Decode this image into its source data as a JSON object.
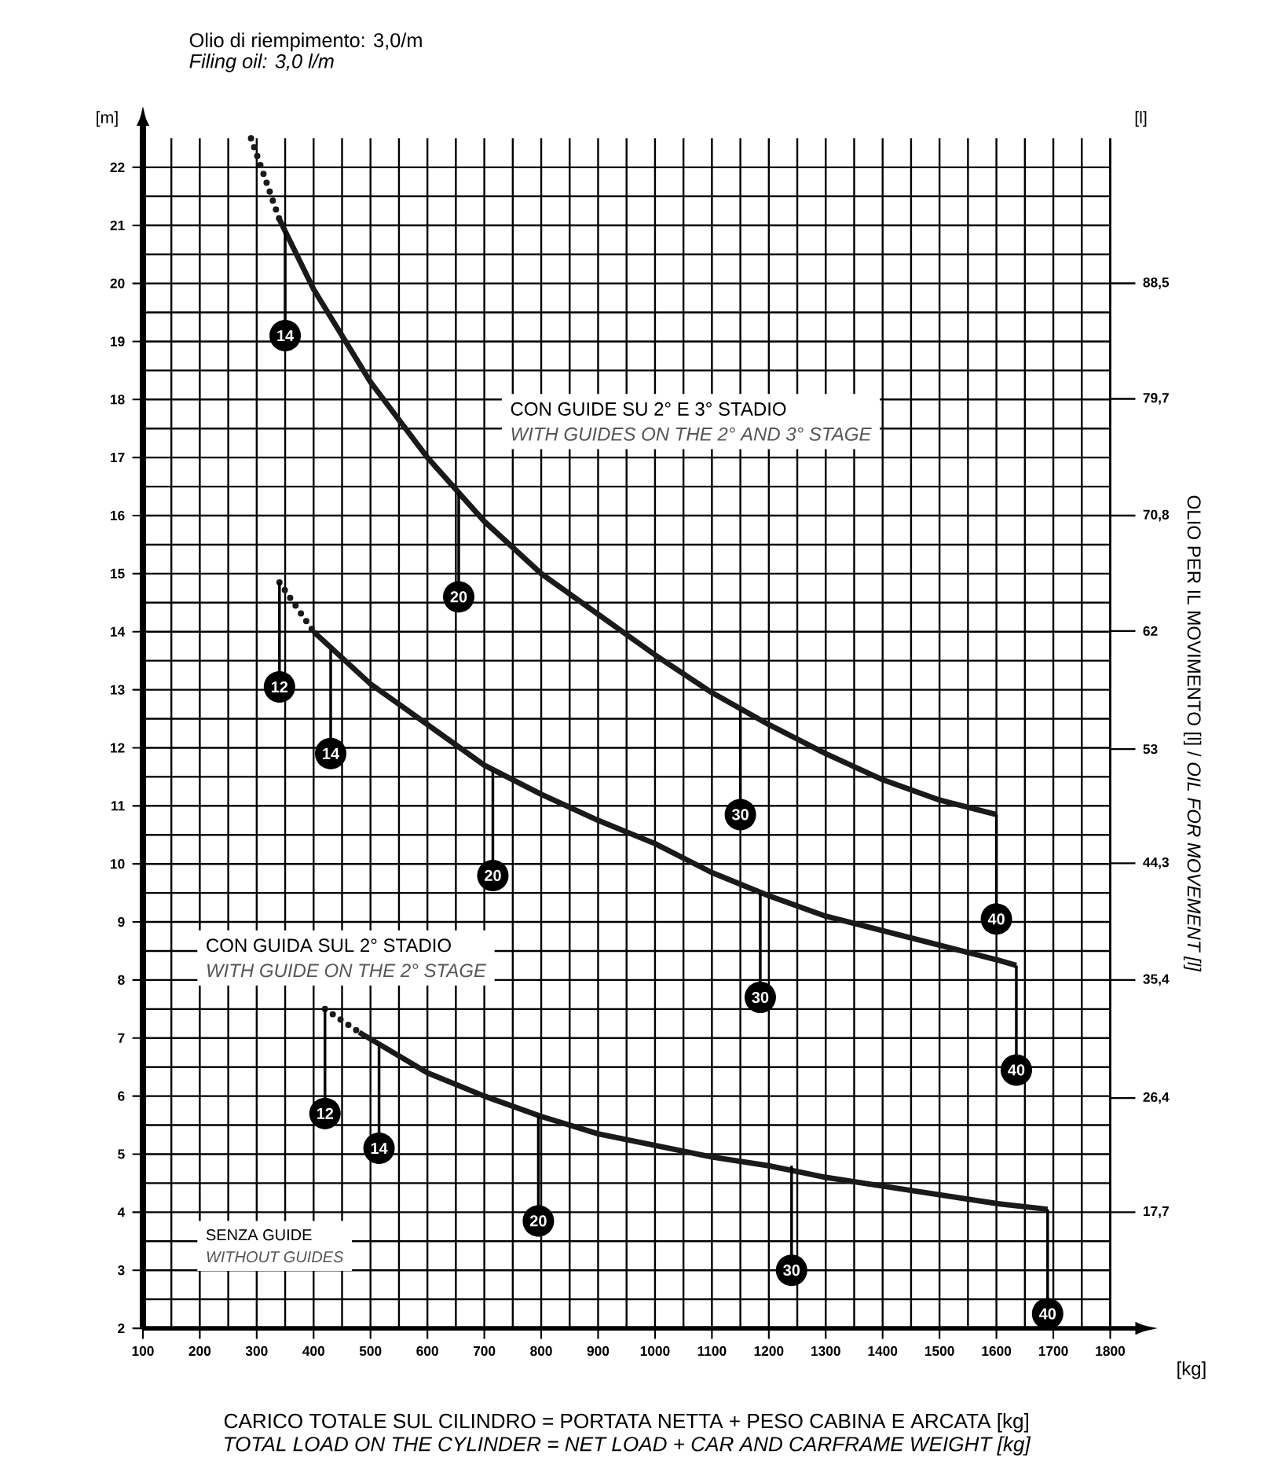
{
  "chart_data": {
    "type": "line",
    "title": "Olio di riempimento: 3,0/m",
    "subtitle": "Filing oil: 3,0 l/m",
    "xlabel": "CARICO TOTALE SUL CILINDRO = PORTATA NETTA + PESO CABINA E ARCATA [kg]",
    "ylabel": "[m]",
    "y2label": "OLIO PER IL MOVIMENTO [l] / *OIL FOR MOVEMENT [l]*",
    "xlim": [
      100,
      1800
    ],
    "xticks": [
      100,
      200,
      300,
      400,
      500,
      600,
      700,
      800,
      900,
      1000,
      1100,
      1200,
      1300,
      1400,
      1500,
      1600,
      1700,
      1800
    ],
    "ylim": [
      2,
      22.5
    ],
    "yticks": [
      2,
      3,
      4,
      5,
      6,
      7,
      8,
      9,
      10,
      11,
      12,
      13,
      14,
      15,
      16,
      17,
      18,
      19,
      20,
      21,
      22
    ],
    "y2lim": [
      8.85,
      99.5625
    ],
    "y2ticks": [
      {
        "value": 17.7,
        "label": "17,7"
      },
      {
        "value": 26.4,
        "label": "26,4"
      },
      {
        "value": 35.4,
        "label": "35,4"
      },
      {
        "value": 44.3,
        "label": "44,3"
      },
      {
        "value": 53,
        "label": "53"
      },
      {
        "value": 62,
        "label": "62"
      },
      {
        "value": 70.8,
        "label": "70,8"
      },
      {
        "value": 79.7,
        "label": "79,7"
      },
      {
        "value": 88.5,
        "label": "88,5"
      }
    ],
    "grid": true,
    "series": [
      {
        "color": "#1a1a1a",
        "line_style": "dotted",
        "x": [
          290,
          340
        ],
        "values": [
          22.5,
          21.1
        ]
      },
      {
        "color": "#1a1a1a",
        "line_style": "solid",
        "x": [
          340,
          400,
          500,
          600,
          700,
          800,
          900,
          1000,
          1100,
          1200,
          1300,
          1400,
          1500,
          1600
        ],
        "values": [
          21.1,
          19.9,
          18.3,
          17.0,
          15.9,
          15.0,
          14.3,
          13.6,
          12.95,
          12.4,
          11.9,
          11.45,
          11.1,
          10.85
        ]
      },
      {
        "color": "#1a1a1a",
        "line_style": "dotted",
        "x": [
          340,
          400
        ],
        "values": [
          14.85,
          14.0
        ]
      },
      {
        "color": "#1a1a1a",
        "line_style": "solid",
        "x": [
          400,
          500,
          600,
          700,
          800,
          900,
          1000,
          1100,
          1200,
          1300,
          1400,
          1500,
          1600,
          1635
        ],
        "values": [
          14.0,
          13.1,
          12.4,
          11.7,
          11.2,
          10.75,
          10.35,
          9.85,
          9.45,
          9.1,
          8.85,
          8.6,
          8.35,
          8.25
        ]
      },
      {
        "color": "#1a1a1a",
        "line_style": "dotted",
        "x": [
          420,
          480
        ],
        "values": [
          7.5,
          7.1
        ]
      },
      {
        "color": "#1a1a1a",
        "line_style": "solid",
        "x": [
          480,
          600,
          700,
          800,
          900,
          1000,
          1100,
          1200,
          1300,
          1400,
          1500,
          1600,
          1690
        ],
        "values": [
          7.1,
          6.4,
          6.0,
          5.65,
          5.35,
          5.15,
          4.95,
          4.8,
          4.6,
          4.45,
          4.3,
          4.15,
          4.05
        ]
      }
    ],
    "annotations": [
      "CON GUIDE SU 2° E 3° STADIO",
      "WITH GUIDES ON THE 2° AND 3° STAGE",
      "CON GUIDA SUL 2° STADIO",
      "WITH GUIDE ON THE 2° STAGE",
      "SENZA GUIDE",
      "WITHOUT GUIDES",
      "[l]",
      "[kg]",
      "TOTAL LOAD ON THE CYLINDER = NET LOAD + CAR AND CARFRAME WEIGHT [kg]",
      {
        "text": "14",
        "x": 350,
        "y": 20.9
      },
      {
        "text": "20",
        "x": 655,
        "y": 16.4
      },
      {
        "text": "30",
        "x": 1150,
        "y": 12.65
      },
      {
        "text": "40",
        "x": 1600,
        "y": 10.85
      },
      {
        "text": "12",
        "x": 340,
        "y": 14.85
      },
      {
        "text": "14",
        "x": 430,
        "y": 13.7
      },
      {
        "text": "20",
        "x": 715,
        "y": 11.6
      },
      {
        "text": "30",
        "x": 1185,
        "y": 9.5
      },
      {
        "text": "40",
        "x": 1635,
        "y": 8.25
      },
      {
        "text": "12",
        "x": 420,
        "y": 7.5
      },
      {
        "text": "14",
        "x": 515,
        "y": 6.9
      },
      {
        "text": "20",
        "x": 795,
        "y": 5.65
      },
      {
        "text": "30",
        "x": 1240,
        "y": 4.8
      },
      {
        "text": "40",
        "x": 1690,
        "y": 4.05
      }
    ]
  }
}
